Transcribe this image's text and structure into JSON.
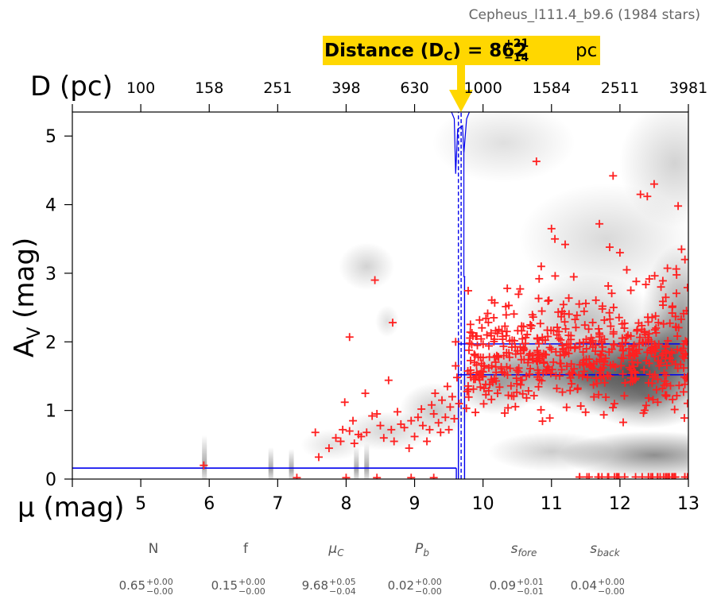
{
  "header": {
    "title": "Cepheus_l111.4_b9.6 (1984 stars)"
  },
  "callout": {
    "prefix": "Distance (D",
    "subscript": "C",
    "equals": ") = ",
    "value": "862",
    "upper": "+21",
    "lower": "−14",
    "unit": "pc"
  },
  "chart_data": {
    "type": "scatter",
    "title": "Cepheus_l111.4_b9.6 (1984 stars)",
    "xlabel": "μ (mag)",
    "ylabel": "A_V (mag)",
    "top_axis_label": "D (pc)",
    "xlim": [
      4,
      13
    ],
    "ylim": [
      0,
      5.35
    ],
    "x_ticks": [
      5,
      6,
      7,
      8,
      9,
      10,
      11,
      12,
      13
    ],
    "y_ticks": [
      0,
      1,
      2,
      3,
      4,
      5
    ],
    "top_ticks": [
      "100",
      "158",
      "251",
      "398",
      "630",
      "1000",
      "1584",
      "2511",
      "3981"
    ],
    "distance_modulus_step": 9.68,
    "foreground_extinction": 0.16,
    "background_extinction_bounds": [
      1.52,
      1.97
    ],
    "series": [
      {
        "values": [
          [
            5.92,
            0.2
          ],
          [
            7.28,
            0.02
          ],
          [
            7.55,
            0.68
          ],
          [
            7.6,
            0.32
          ],
          [
            7.75,
            0.45
          ],
          [
            7.85,
            0.6
          ],
          [
            7.92,
            0.55
          ],
          [
            7.95,
            0.72
          ],
          [
            7.98,
            1.12
          ],
          [
            8.05,
            0.7
          ],
          [
            8.05,
            2.07
          ],
          [
            8.1,
            0.85
          ],
          [
            8.12,
            0.52
          ],
          [
            8.18,
            0.65
          ],
          [
            8.22,
            0.62
          ],
          [
            8.28,
            1.25
          ],
          [
            8.3,
            0.68
          ],
          [
            8.38,
            0.92
          ],
          [
            8.42,
            2.9
          ],
          [
            8.45,
            0.95
          ],
          [
            8.5,
            0.78
          ],
          [
            8.55,
            0.6
          ],
          [
            8.62,
            1.44
          ],
          [
            8.66,
            0.72
          ],
          [
            8.68,
            2.28
          ],
          [
            8.7,
            0.55
          ],
          [
            8.75,
            0.98
          ],
          [
            8.8,
            0.8
          ],
          [
            8.85,
            0.75
          ],
          [
            8.92,
            0.45
          ],
          [
            8.95,
            0.85
          ],
          [
            9.0,
            0.62
          ],
          [
            9.05,
            0.9
          ],
          [
            9.1,
            1.02
          ],
          [
            9.12,
            0.78
          ],
          [
            9.18,
            0.55
          ],
          [
            9.22,
            0.72
          ],
          [
            9.25,
            1.08
          ],
          [
            9.28,
            0.95
          ],
          [
            9.3,
            1.25
          ],
          [
            9.35,
            0.82
          ],
          [
            9.38,
            0.68
          ],
          [
            9.4,
            1.15
          ],
          [
            9.45,
            0.9
          ],
          [
            9.48,
            1.35
          ],
          [
            9.5,
            0.72
          ],
          [
            9.52,
            1.05
          ],
          [
            9.55,
            1.2
          ],
          [
            9.58,
            0.88
          ],
          [
            9.6,
            1.65
          ],
          [
            9.6,
            2.0
          ],
          [
            9.62,
            1.48
          ],
          [
            9.65,
            1.1
          ],
          [
            9.28,
            0.02
          ],
          [
            8.45,
            0.02
          ],
          [
            8.0,
            0.02
          ],
          [
            8.95,
            0.02
          ],
          [
            10.78,
            4.63
          ],
          [
            11.9,
            4.42
          ],
          [
            12.3,
            4.15
          ],
          [
            12.5,
            4.3
          ],
          [
            12.85,
            3.98
          ],
          [
            12.4,
            4.12
          ],
          [
            11.0,
            3.65
          ],
          [
            11.05,
            3.5
          ],
          [
            11.2,
            3.42
          ],
          [
            10.85,
            3.1
          ],
          [
            11.85,
            3.38
          ],
          [
            11.7,
            3.72
          ],
          [
            12.1,
            3.05
          ],
          [
            12.9,
            3.35
          ],
          [
            12.95,
            3.2
          ],
          [
            10.82,
            2.92
          ],
          [
            12.0,
            3.3
          ],
          [
            12.6,
            2.8
          ]
        ]
      }
    ]
  },
  "params": [
    {
      "name": "N",
      "value": "0.65",
      "upper": "+0.00",
      "lower": "−0.00"
    },
    {
      "name": "f",
      "value": "0.15",
      "upper": "+0.00",
      "lower": "−0.00"
    },
    {
      "name": "μ",
      "sub": "C",
      "value": "9.68",
      "upper": "+0.05",
      "lower": "−0.04"
    },
    {
      "name": "P",
      "sub": "b",
      "value": "0.02",
      "upper": "+0.00",
      "lower": "−0.00"
    },
    {
      "name": "s",
      "sub": "fore",
      "value": "0.09",
      "upper": "+0.01",
      "lower": "−0.01"
    },
    {
      "name": "s",
      "sub": "back",
      "value": "0.04",
      "upper": "+0.00",
      "lower": "−0.00"
    }
  ],
  "colors": {
    "marker": "#ff2020",
    "model_line": "#0000ee",
    "callout_bg": "#ffd700",
    "param_text": "#555555"
  }
}
